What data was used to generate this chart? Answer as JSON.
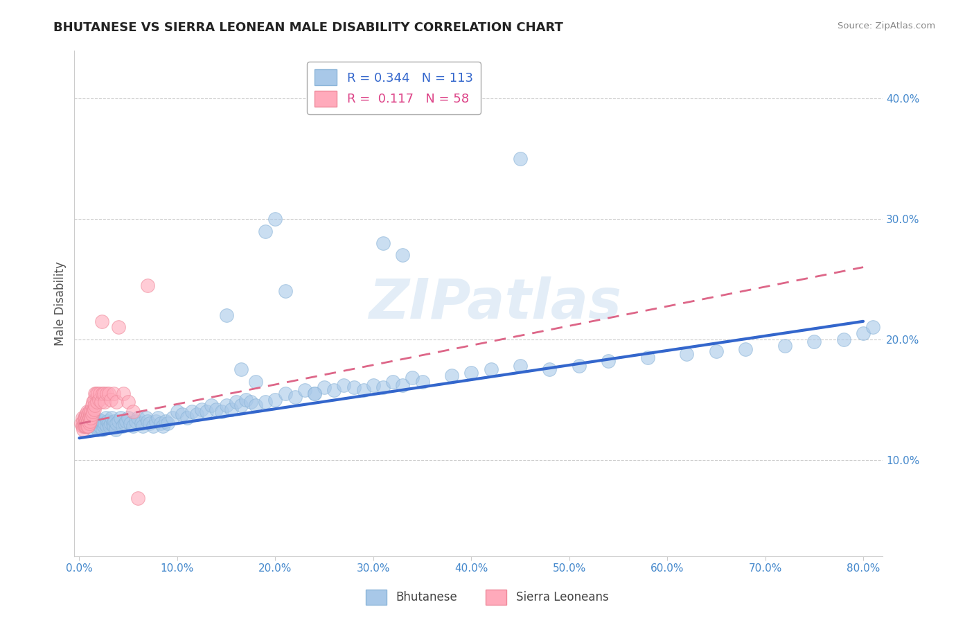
{
  "title": "BHUTANESE VS SIERRA LEONEAN MALE DISABILITY CORRELATION CHART",
  "source": "Source: ZipAtlas.com",
  "xlabel": "",
  "ylabel": "Male Disability",
  "xlim": [
    -0.005,
    0.82
  ],
  "ylim": [
    0.02,
    0.44
  ],
  "xticks": [
    0.0,
    0.1,
    0.2,
    0.3,
    0.4,
    0.5,
    0.6,
    0.7,
    0.8
  ],
  "yticks": [
    0.1,
    0.2,
    0.3,
    0.4
  ],
  "blue_R": 0.344,
  "blue_N": 113,
  "pink_R": 0.117,
  "pink_N": 58,
  "blue_color": "#a8c8e8",
  "blue_edge_color": "#8ab4d8",
  "blue_line_color": "#3366cc",
  "pink_color": "#ffaabb",
  "pink_edge_color": "#ee8899",
  "pink_line_color": "#dd6688",
  "background_color": "#ffffff",
  "watermark": "ZIPatlas",
  "legend_label_blue": "Bhutanese",
  "legend_label_pink": "Sierra Leoneans",
  "grid_color": "#cccccc",
  "blue_x": [
    0.005,
    0.008,
    0.01,
    0.012,
    0.013,
    0.014,
    0.015,
    0.016,
    0.017,
    0.018,
    0.019,
    0.02,
    0.021,
    0.022,
    0.023,
    0.024,
    0.025,
    0.026,
    0.027,
    0.028,
    0.029,
    0.03,
    0.031,
    0.032,
    0.033,
    0.034,
    0.035,
    0.036,
    0.037,
    0.038,
    0.04,
    0.042,
    0.044,
    0.046,
    0.048,
    0.05,
    0.052,
    0.055,
    0.058,
    0.06,
    0.063,
    0.065,
    0.068,
    0.07,
    0.072,
    0.075,
    0.078,
    0.08,
    0.083,
    0.085,
    0.088,
    0.09,
    0.095,
    0.1,
    0.105,
    0.11,
    0.115,
    0.12,
    0.125,
    0.13,
    0.135,
    0.14,
    0.145,
    0.15,
    0.155,
    0.16,
    0.165,
    0.17,
    0.175,
    0.18,
    0.19,
    0.2,
    0.21,
    0.22,
    0.23,
    0.24,
    0.25,
    0.26,
    0.27,
    0.28,
    0.29,
    0.3,
    0.31,
    0.32,
    0.33,
    0.34,
    0.35,
    0.38,
    0.4,
    0.42,
    0.45,
    0.48,
    0.51,
    0.54,
    0.58,
    0.62,
    0.65,
    0.68,
    0.72,
    0.75,
    0.78,
    0.8,
    0.81,
    0.15,
    0.165,
    0.18,
    0.21,
    0.24,
    0.19,
    0.2,
    0.31,
    0.33,
    0.45
  ],
  "blue_y": [
    0.135,
    0.13,
    0.14,
    0.135,
    0.13,
    0.125,
    0.13,
    0.128,
    0.132,
    0.128,
    0.125,
    0.133,
    0.128,
    0.13,
    0.132,
    0.125,
    0.128,
    0.13,
    0.135,
    0.128,
    0.132,
    0.13,
    0.128,
    0.13,
    0.135,
    0.13,
    0.128,
    0.132,
    0.125,
    0.13,
    0.132,
    0.135,
    0.128,
    0.13,
    0.132,
    0.135,
    0.13,
    0.128,
    0.132,
    0.135,
    0.13,
    0.128,
    0.135,
    0.132,
    0.13,
    0.128,
    0.132,
    0.135,
    0.13,
    0.128,
    0.132,
    0.13,
    0.135,
    0.14,
    0.138,
    0.135,
    0.14,
    0.138,
    0.142,
    0.14,
    0.145,
    0.142,
    0.14,
    0.145,
    0.142,
    0.148,
    0.145,
    0.15,
    0.148,
    0.145,
    0.148,
    0.15,
    0.155,
    0.152,
    0.158,
    0.155,
    0.16,
    0.158,
    0.162,
    0.16,
    0.158,
    0.162,
    0.16,
    0.165,
    0.162,
    0.168,
    0.165,
    0.17,
    0.172,
    0.175,
    0.178,
    0.175,
    0.178,
    0.182,
    0.185,
    0.188,
    0.19,
    0.192,
    0.195,
    0.198,
    0.2,
    0.205,
    0.21,
    0.22,
    0.175,
    0.165,
    0.24,
    0.155,
    0.29,
    0.3,
    0.28,
    0.27,
    0.35
  ],
  "pink_x": [
    0.002,
    0.003,
    0.003,
    0.004,
    0.004,
    0.004,
    0.005,
    0.005,
    0.005,
    0.006,
    0.006,
    0.006,
    0.007,
    0.007,
    0.007,
    0.008,
    0.008,
    0.008,
    0.008,
    0.009,
    0.009,
    0.009,
    0.01,
    0.01,
    0.01,
    0.011,
    0.011,
    0.012,
    0.012,
    0.013,
    0.013,
    0.014,
    0.014,
    0.015,
    0.015,
    0.016,
    0.016,
    0.017,
    0.018,
    0.019,
    0.02,
    0.021,
    0.022,
    0.023,
    0.024,
    0.025,
    0.026,
    0.028,
    0.03,
    0.032,
    0.035,
    0.038,
    0.04,
    0.045,
    0.05,
    0.055,
    0.06,
    0.07
  ],
  "pink_y": [
    0.13,
    0.135,
    0.128,
    0.132,
    0.128,
    0.125,
    0.135,
    0.13,
    0.128,
    0.135,
    0.13,
    0.128,
    0.138,
    0.132,
    0.128,
    0.14,
    0.135,
    0.13,
    0.128,
    0.138,
    0.132,
    0.128,
    0.14,
    0.135,
    0.13,
    0.138,
    0.132,
    0.14,
    0.135,
    0.145,
    0.138,
    0.148,
    0.14,
    0.15,
    0.142,
    0.155,
    0.145,
    0.155,
    0.148,
    0.155,
    0.15,
    0.155,
    0.148,
    0.215,
    0.155,
    0.155,
    0.148,
    0.155,
    0.155,
    0.15,
    0.155,
    0.148,
    0.21,
    0.155,
    0.148,
    0.14,
    0.068,
    0.245
  ],
  "blue_line_x": [
    0.0,
    0.8
  ],
  "blue_line_y": [
    0.118,
    0.215
  ],
  "pink_line_x": [
    0.0,
    0.8
  ],
  "pink_line_y": [
    0.13,
    0.26
  ]
}
